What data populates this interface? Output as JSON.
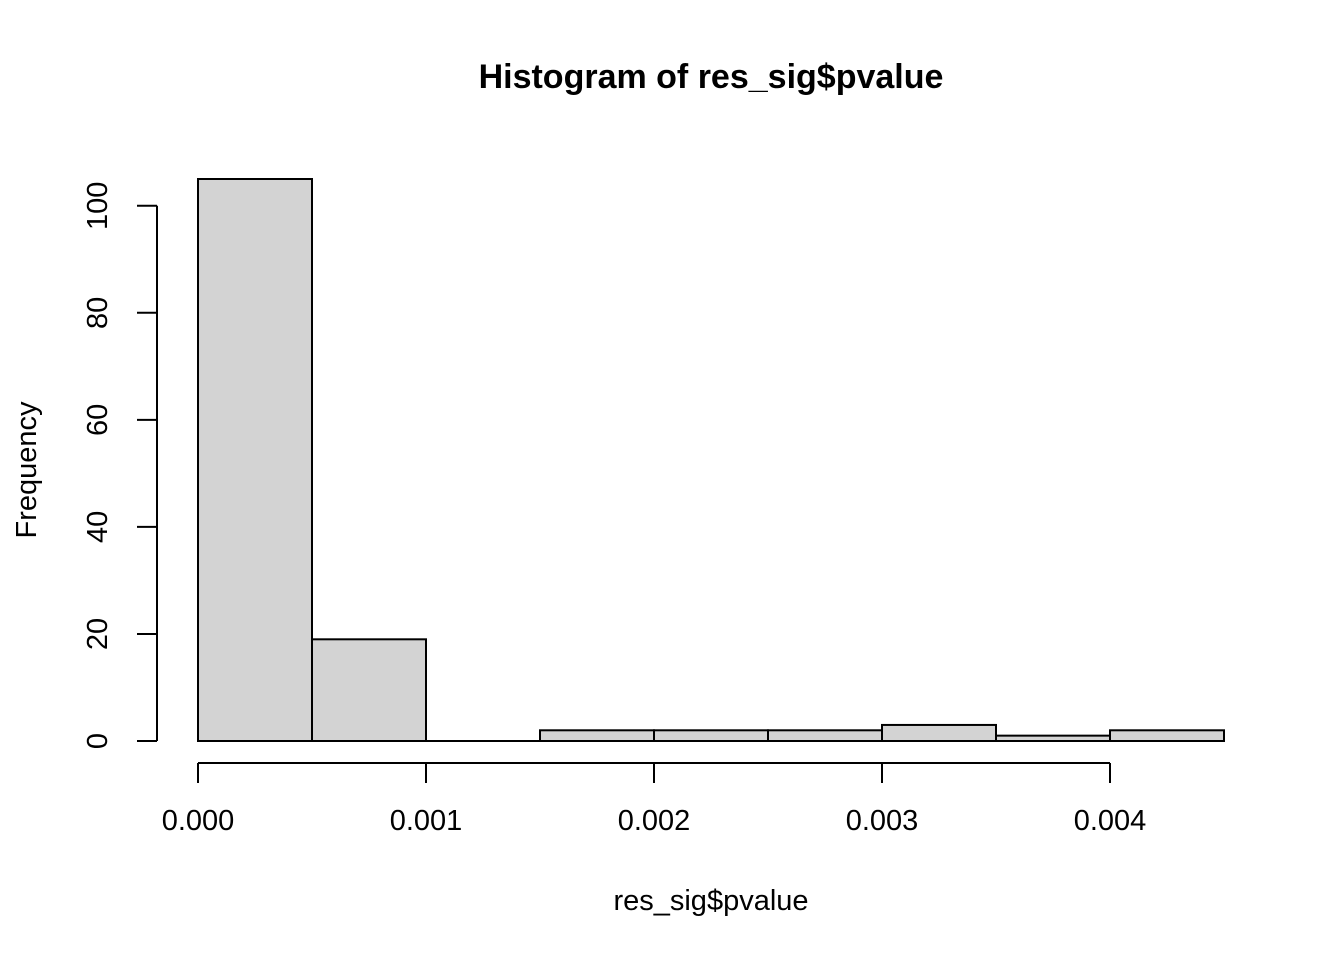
{
  "chart_data": {
    "type": "bar",
    "subtype": "histogram",
    "title": "Histogram of res_sig$pvalue",
    "xlabel": "res_sig$pvalue",
    "ylabel": "Frequency",
    "bin_edges": [
      0.0,
      0.0005,
      0.001,
      0.0015,
      0.002,
      0.0025,
      0.003,
      0.0035,
      0.004,
      0.0045
    ],
    "bins": {
      "start": 0.0,
      "width": 0.0005,
      "counts": [
        105,
        19,
        0,
        2,
        2,
        2,
        3,
        1,
        2
      ]
    },
    "x_tick_values": [
      0.0,
      0.001,
      0.002,
      0.003,
      0.004
    ],
    "x_tick_labels": [
      "0.000",
      "0.001",
      "0.002",
      "0.003",
      "0.004"
    ],
    "y_tick_values": [
      0,
      20,
      40,
      60,
      80,
      100
    ],
    "y_tick_labels": [
      "0",
      "20",
      "40",
      "60",
      "80",
      "100"
    ],
    "xlim": [
      0.0,
      0.0045
    ],
    "ylim": [
      0,
      105
    ],
    "grid": false,
    "legend_position": null,
    "colors": {
      "bar_fill": "#d3d3d3",
      "bar_border": "#000000",
      "axis": "#000000",
      "text": "#000000",
      "background": "#ffffff"
    }
  }
}
